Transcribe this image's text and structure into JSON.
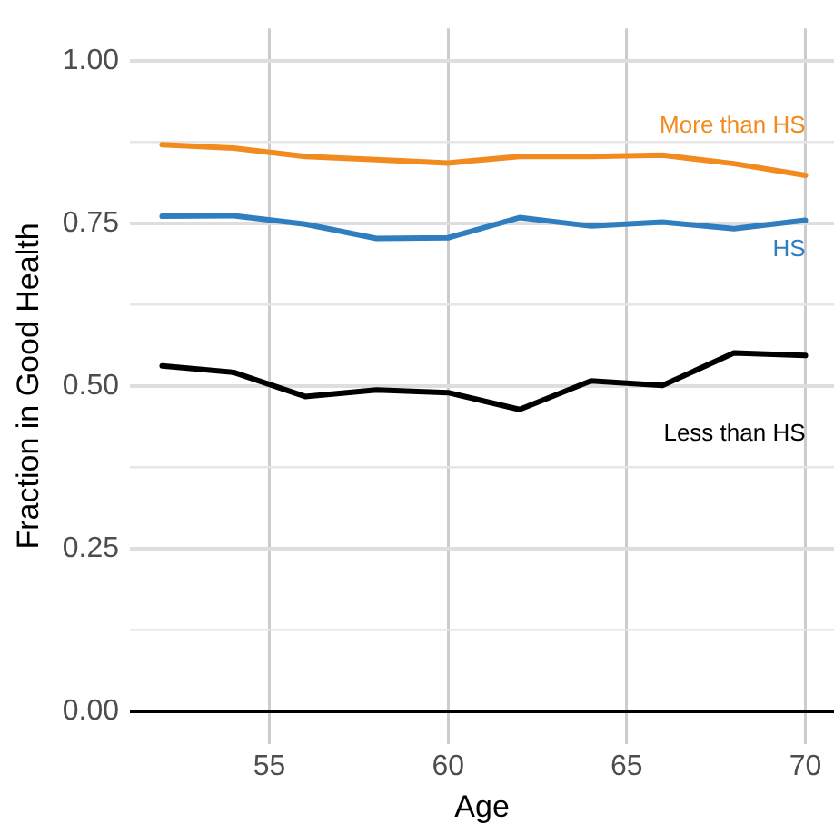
{
  "chart_data": {
    "type": "line",
    "xlabel": "Age",
    "ylabel": "Fraction in Good Health",
    "x": [
      52,
      54,
      56,
      58,
      60,
      62,
      64,
      66,
      68,
      70
    ],
    "series": [
      {
        "name": "More than HS",
        "color": "#f28b1f",
        "values": [
          0.871,
          0.866,
          0.853,
          0.848,
          0.843,
          0.853,
          0.853,
          0.855,
          0.842,
          0.824
        ]
      },
      {
        "name": "HS",
        "color": "#2f7fc0",
        "values": [
          0.761,
          0.762,
          0.749,
          0.727,
          0.728,
          0.759,
          0.746,
          0.752,
          0.742,
          0.755
        ]
      },
      {
        "name": "Less than HS",
        "color": "#000000",
        "values": [
          0.531,
          0.521,
          0.484,
          0.494,
          0.49,
          0.464,
          0.508,
          0.501,
          0.551,
          0.547
        ]
      }
    ],
    "xlim": [
      51.1,
      70.8
    ],
    "xticks": [
      55,
      60,
      65,
      70
    ],
    "ylim": [
      -0.05,
      1.05
    ],
    "yticks": [
      {
        "value": 0,
        "label": "0.00"
      },
      {
        "value": 0.125,
        "label": null
      },
      {
        "value": 0.25,
        "label": "0.25"
      },
      {
        "value": 0.375,
        "label": null
      },
      {
        "value": 0.5,
        "label": "0.50"
      },
      {
        "value": 0.625,
        "label": null
      },
      {
        "value": 0.75,
        "label": "0.75"
      },
      {
        "value": 0.875,
        "label": null
      },
      {
        "value": 1,
        "label": "1.00"
      }
    ],
    "grid": true,
    "legend": false,
    "marker": "none",
    "line_style": "solid"
  }
}
